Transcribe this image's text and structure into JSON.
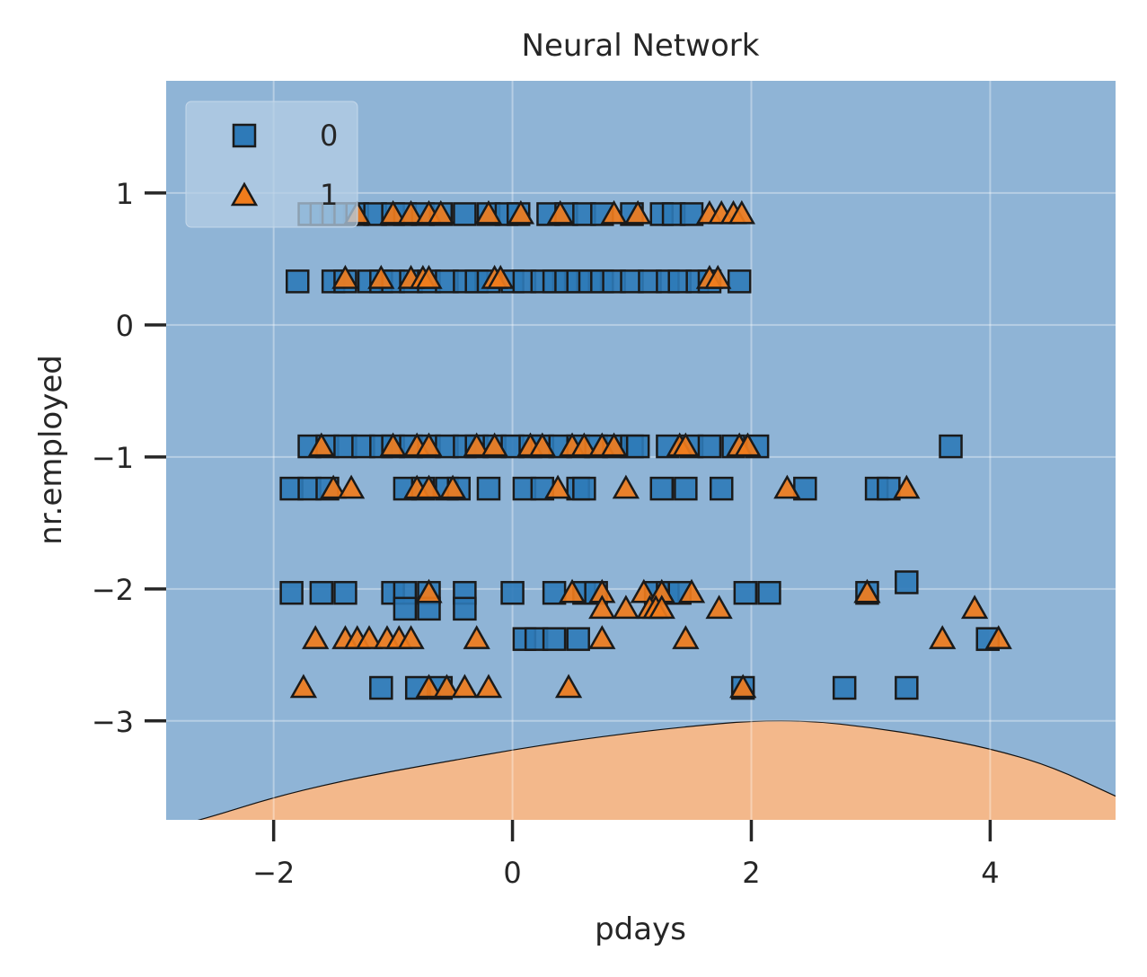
{
  "chart_data": {
    "type": "scatter",
    "title": "Neural Network",
    "xlabel": "pdays",
    "ylabel": "nr.employed",
    "xlim": [
      -2.9,
      5.05
    ],
    "ylim": [
      -3.75,
      1.85
    ],
    "xticks": [
      -2,
      0,
      2,
      4
    ],
    "yticks": [
      1,
      0,
      -1,
      -2,
      -3
    ],
    "grid": true,
    "legend": {
      "location": "upper-left",
      "entries": [
        "0",
        "1"
      ]
    },
    "decision_regions": {
      "region_colors": {
        "0": "#8fb4d6",
        "1": "#f3b88b"
      },
      "boundary": {
        "x": [
          -2.9,
          -2.5,
          -2.0,
          -1.5,
          -1.0,
          -0.5,
          0.0,
          0.5,
          1.0,
          1.5,
          2.0,
          2.5,
          3.0,
          3.5,
          4.0,
          4.5,
          5.05
        ],
        "y": [
          -3.82,
          -3.72,
          -3.58,
          -3.47,
          -3.38,
          -3.3,
          -3.22,
          -3.15,
          -3.09,
          -3.04,
          -3.0,
          -3.0,
          -3.05,
          -3.12,
          -3.21,
          -3.34,
          -3.57
        ]
      }
    },
    "colors": {
      "0": "#2e7ab8",
      "1": "#f07c1c"
    },
    "series": [
      {
        "name": "0",
        "marker": "square",
        "x": [
          -1.7,
          -1.6,
          -1.5,
          -1.4,
          -1.3,
          -1.15,
          -1.0,
          -0.9,
          -0.75,
          -0.6,
          -0.4,
          -0.2,
          -0.05,
          0.05,
          0.3,
          0.45,
          0.6,
          0.75,
          1.0,
          1.25,
          1.35,
          1.5,
          -1.8,
          -1.5,
          -1.4,
          -1.2,
          -1.1,
          -1.0,
          -0.85,
          -0.7,
          -0.55,
          -0.4,
          -0.3,
          -0.2,
          0.0,
          0.1,
          0.25,
          0.35,
          0.45,
          0.55,
          0.65,
          0.75,
          0.85,
          1.0,
          1.15,
          1.3,
          1.4,
          1.55,
          1.65,
          1.9,
          -1.7,
          -1.55,
          -1.4,
          -1.25,
          -1.1,
          -1.0,
          -0.85,
          -0.7,
          -0.55,
          -0.4,
          -0.3,
          -0.15,
          0.0,
          0.15,
          0.25,
          0.4,
          0.55,
          0.7,
          0.85,
          1.0,
          1.05,
          1.3,
          1.5,
          1.65,
          1.85,
          2.05,
          3.67,
          -1.85,
          -1.7,
          -1.55,
          -0.9,
          -0.75,
          -0.55,
          -0.45,
          -0.2,
          0.1,
          0.25,
          0.55,
          0.6,
          1.25,
          1.45,
          1.75,
          2.45,
          3.05,
          3.15,
          -1.85,
          -1.6,
          -1.4,
          -1.0,
          -0.9,
          -0.7,
          -0.4,
          0.0,
          0.35,
          0.6,
          0.7,
          1.2,
          1.3,
          1.4,
          1.95,
          2.15,
          2.97,
          3.3,
          -0.9,
          -0.7,
          -0.4,
          0.1,
          0.2,
          0.35,
          0.55,
          3.98,
          -1.1,
          -0.8,
          -0.6,
          1.93,
          2.78,
          3.3
        ]
      },
      {
        "name": "1",
        "marker": "triangle",
        "x": [
          -1.3,
          -1.0,
          -0.85,
          -0.7,
          -0.6,
          -0.2,
          0.07,
          0.4,
          0.85,
          1.05,
          1.65,
          1.75,
          1.85,
          1.92,
          -1.4,
          -1.1,
          -0.85,
          -0.75,
          -0.7,
          -0.15,
          -0.1,
          1.65,
          1.72,
          -1.6,
          -1.0,
          -0.8,
          -0.7,
          -0.3,
          -0.15,
          0.15,
          0.25,
          0.5,
          0.6,
          0.75,
          0.85,
          1.4,
          1.45,
          1.9,
          1.97,
          -1.5,
          -1.35,
          -0.8,
          -0.7,
          -0.5,
          0.38,
          0.95,
          2.3,
          3.3,
          -0.7,
          0.5,
          0.75,
          1.1,
          1.25,
          1.5,
          2.97,
          0.75,
          0.95,
          1.15,
          1.2,
          1.25,
          1.73,
          3.87,
          -1.65,
          -1.4,
          -1.3,
          -1.2,
          -1.05,
          -0.95,
          -0.85,
          -0.3,
          0.75,
          1.45,
          3.6,
          4.07,
          -1.75,
          -0.7,
          -0.55,
          -0.4,
          -0.2,
          0.47,
          1.93
        ]
      }
    ]
  }
}
